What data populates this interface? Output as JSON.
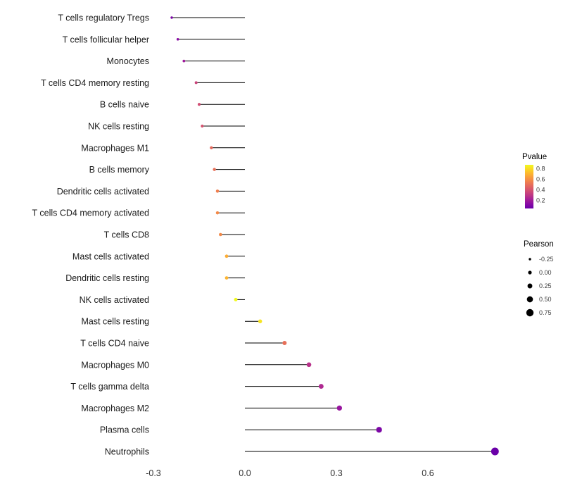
{
  "chart_data": {
    "type": "scatter",
    "style": "horizontal-lollipop",
    "title": "",
    "xlabel": "",
    "ylabel": "",
    "categories": [
      "T cells regulatory Tregs",
      "T cells follicular helper",
      "Monocytes",
      "T cells CD4 memory resting",
      "B cells naive",
      "NK cells resting",
      "Macrophages M1",
      "B cells memory",
      "Dendritic cells activated",
      "T cells CD4 memory activated",
      "T cells CD8",
      "Mast cells activated",
      "Dendritic cells resting",
      "NK cells activated",
      "Mast cells resting",
      "T cells CD4 naive",
      "Macrophages M0",
      "T cells gamma delta",
      "Macrophages M2",
      "Plasma cells",
      "Neutrophils"
    ],
    "series": [
      {
        "name": "Pearson",
        "values": [
          -0.24,
          -0.22,
          -0.2,
          -0.16,
          -0.15,
          -0.14,
          -0.11,
          -0.1,
          -0.09,
          -0.09,
          -0.08,
          -0.06,
          -0.06,
          -0.03,
          0.05,
          0.13,
          0.21,
          0.25,
          0.31,
          0.44,
          0.82
        ]
      },
      {
        "name": "Pvalue",
        "values": [
          0.1,
          0.14,
          0.2,
          0.35,
          0.38,
          0.4,
          0.48,
          0.5,
          0.55,
          0.58,
          0.58,
          0.68,
          0.7,
          0.87,
          0.82,
          0.5,
          0.28,
          0.25,
          0.18,
          0.1,
          0.05
        ]
      }
    ],
    "xlim": [
      -0.32,
      0.88
    ],
    "x_ticks": [
      -0.3,
      0.0,
      0.3,
      0.6
    ],
    "x_tick_labels": [
      "-0.3",
      "0.0",
      "0.3",
      "0.6"
    ],
    "grid": false,
    "point_color_by": "Pvalue",
    "point_size_by": "Pearson",
    "stem_color": "#000000",
    "background_color": "#ffffff",
    "legend_color": {
      "title": "Pvalue",
      "tick_labels": [
        "0.8",
        "0.6",
        "0.4",
        "0.2"
      ],
      "tick_values": [
        0.8,
        0.6,
        0.4,
        0.2
      ],
      "domain": [
        0.05,
        0.87
      ],
      "colormap": "plasma",
      "top_color_hex": "#f0f921",
      "bottom_color_hex": "#6a00a8"
    },
    "legend_size": {
      "title": "Pearson",
      "tick_labels": [
        "-0.25",
        "0.00",
        "0.25",
        "0.50",
        "0.75"
      ],
      "tick_values": [
        -0.25,
        0.0,
        0.25,
        0.5,
        0.75
      ]
    }
  }
}
